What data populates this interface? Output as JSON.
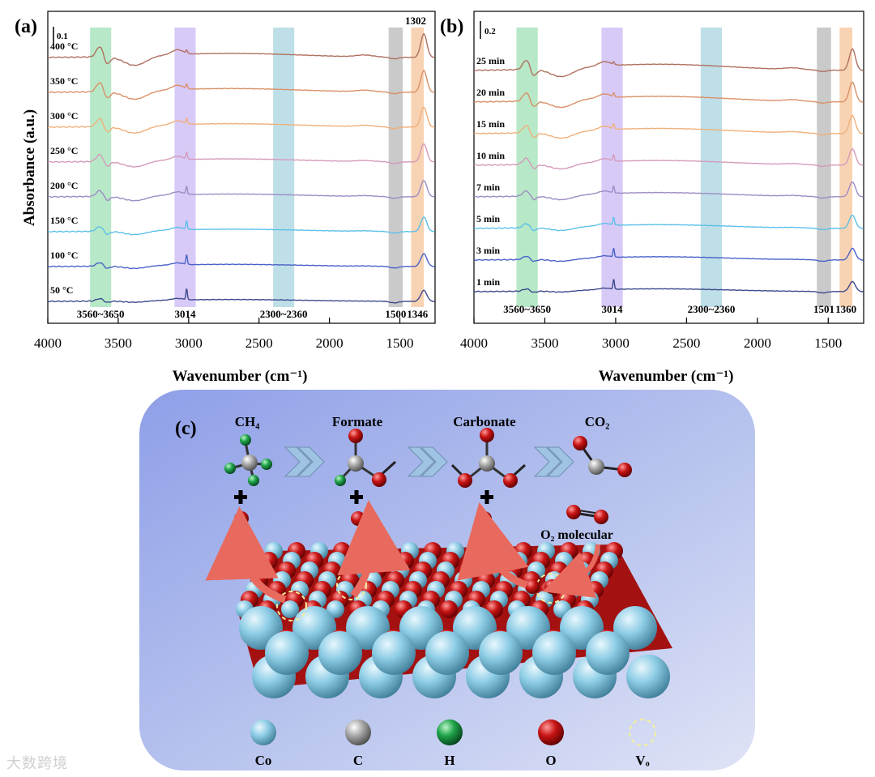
{
  "chart_data": [
    {
      "panel": "(a)",
      "type": "line",
      "title": "",
      "xlabel": "Wavenumber (cm⁻¹)",
      "ylabel": "Absorbance (a.u.)",
      "xlim": [
        4000,
        1250
      ],
      "xticks": [
        4000,
        3500,
        3000,
        2500,
        2000,
        1500
      ],
      "scale_bar": "0.1",
      "series": [
        {
          "name": "50 °C",
          "color": "#3c4a8c",
          "baseline": 0.0,
          "features": {
            "3650": 0.002,
            "3014": 0.0,
            "1346": 0.005
          }
        },
        {
          "name": "100 °C",
          "color": "#4a62c8",
          "baseline": 0.09,
          "features": {
            "3650": 0.01,
            "3014": 0.12,
            "1346": 0.05
          }
        },
        {
          "name": "150 °C",
          "color": "#5cc0e8",
          "baseline": 0.18,
          "features": {
            "3650": 0.02,
            "3014": 0.11,
            "1346": 0.08
          }
        },
        {
          "name": "200 °C",
          "color": "#9d8cc4",
          "baseline": 0.28,
          "features": {
            "3650": 0.03,
            "3014": 0.1,
            "1346": 0.1
          }
        },
        {
          "name": "250 °C",
          "color": "#d59aba",
          "baseline": 0.37,
          "features": {
            "3650": 0.04,
            "3014": 0.09,
            "1346": 0.12
          }
        },
        {
          "name": "300 °C",
          "color": "#f0b07a",
          "baseline": 0.46,
          "features": {
            "3650": 0.05,
            "3014": 0.08,
            "1346": 0.13
          }
        },
        {
          "name": "350 °C",
          "color": "#d99067",
          "baseline": 0.55,
          "features": {
            "3650": 0.06,
            "3014": 0.07,
            "1346": 0.15
          }
        },
        {
          "name": "400 °C",
          "color": "#b07060",
          "baseline": 0.64,
          "features": {
            "3650": 0.07,
            "3014": 0.06,
            "1346": 0.17
          }
        }
      ],
      "bands": [
        {
          "label": "3560~3650",
          "from": 3700,
          "to": 3550,
          "color": "#9fe0b4"
        },
        {
          "label": "3014",
          "from": 3100,
          "to": 2950,
          "color": "#cbb8f4"
        },
        {
          "label": "2300~2360",
          "from": 2400,
          "to": 2250,
          "color": "#a9d4e0"
        },
        {
          "label": "1500",
          "from": 1580,
          "to": 1480,
          "color": "#b8b8b8"
        },
        {
          "label": "1346",
          "from": 1420,
          "to": 1330,
          "color": "#f6c49a"
        }
      ],
      "annotations": [
        "1302"
      ]
    },
    {
      "panel": "(b)",
      "type": "line",
      "title": "",
      "xlabel": "Wavenumber (cm⁻¹)",
      "ylabel": "",
      "xlim": [
        4000,
        1250
      ],
      "xticks": [
        4000,
        3500,
        3000,
        2500,
        2000,
        1500
      ],
      "scale_bar": "0.2",
      "series": [
        {
          "name": "1 min",
          "color": "#3c4a8c",
          "baseline": 0.0
        },
        {
          "name": "3 min",
          "color": "#4a62c8",
          "baseline": 0.1
        },
        {
          "name": "5 min",
          "color": "#5cc0e8",
          "baseline": 0.2
        },
        {
          "name": "7 min",
          "color": "#9d8cc4",
          "baseline": 0.3
        },
        {
          "name": "10 min",
          "color": "#d59aba",
          "baseline": 0.4
        },
        {
          "name": "15 min",
          "color": "#f0b07a",
          "baseline": 0.5
        },
        {
          "name": "20 min",
          "color": "#d99067",
          "baseline": 0.6
        },
        {
          "name": "25 min",
          "color": "#b07060",
          "baseline": 0.7
        }
      ],
      "bands": [
        {
          "label": "3560~3650",
          "from": 3700,
          "to": 3550,
          "color": "#9fe0b4"
        },
        {
          "label": "3014",
          "from": 3100,
          "to": 2950,
          "color": "#cbb8f4"
        },
        {
          "label": "2300~2360",
          "from": 2400,
          "to": 2250,
          "color": "#a9d4e0"
        },
        {
          "label": "1501",
          "from": 1580,
          "to": 1480,
          "color": "#b8b8b8"
        },
        {
          "label": "1360",
          "from": 1420,
          "to": 1330,
          "color": "#f6c49a"
        }
      ]
    }
  ],
  "schematic": {
    "panel": "(c)",
    "stages": [
      "CH₄",
      "Formate",
      "Carbonate",
      "CO₂"
    ],
    "o2_label": "O₂ molecular",
    "legend": [
      {
        "name": "Co",
        "color": "#8ecde6"
      },
      {
        "name": "C",
        "color": "#a8a8a8"
      },
      {
        "name": "H",
        "color": "#1fa34a"
      },
      {
        "name": "O",
        "color": "#c81414"
      },
      {
        "name": "Vₒ",
        "color": "#f3ef9a"
      }
    ]
  },
  "watermark": "大数跨境",
  "colors": {
    "co": "#8ecde6",
    "o": "#c81414",
    "c": "#a8a8a8",
    "h": "#1fa34a",
    "arrow": "#e86a5e"
  }
}
